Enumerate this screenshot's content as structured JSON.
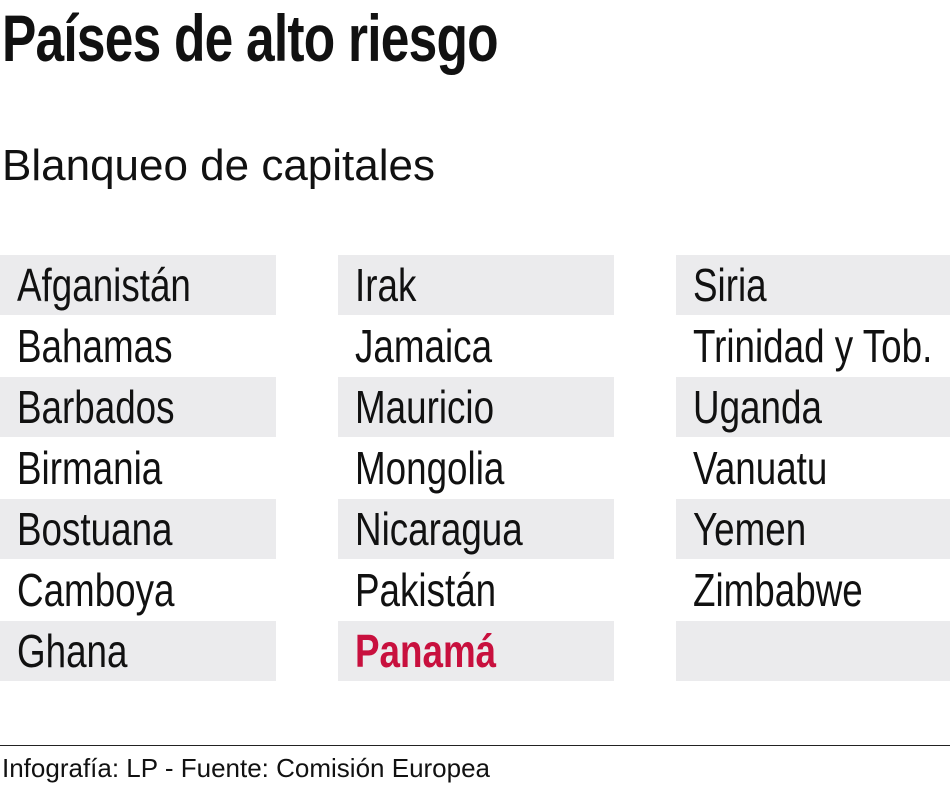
{
  "header": {
    "title": "Países de alto riesgo",
    "subtitle": "Blanqueo de capitales"
  },
  "table": {
    "columns": [
      [
        "Afganistán",
        "Bahamas",
        "Barbados",
        "Birmania",
        "Bostuana",
        "Camboya",
        "Ghana"
      ],
      [
        "Irak",
        "Jamaica",
        "Mauricio",
        "Mongolia",
        "Nicaragua",
        "Pakistán",
        "Panamá"
      ],
      [
        "Siria",
        "Trinidad y Tob.",
        "Uganda",
        "Vanuatu",
        "Yemen",
        "Zimbabwe"
      ]
    ],
    "highlighted": [
      1,
      6
    ],
    "highlight_color": "#c8103e",
    "stripe_color": "#ebebed"
  },
  "footer": {
    "text": "Infografía: LP - Fuente: Comisión Europea"
  }
}
